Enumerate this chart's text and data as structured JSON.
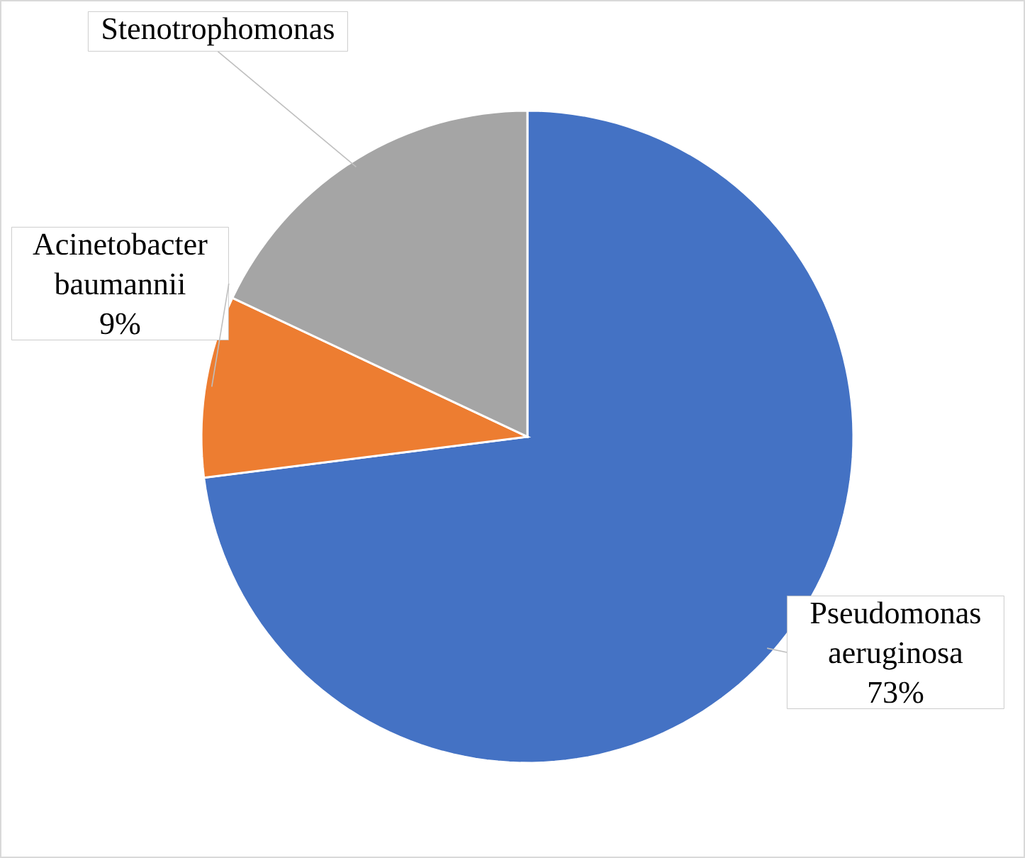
{
  "chart_data": {
    "type": "pie",
    "categories": [
      "Pseudomonas aeruginosa",
      "Acinetobacter baumannii",
      "Stenotrophomonas"
    ],
    "values": [
      73,
      9,
      18
    ],
    "colors": [
      "#4472c4",
      "#ed7d31",
      "#a5a5a5"
    ],
    "value_labels": [
      "73%",
      "9%",
      null
    ]
  }
}
